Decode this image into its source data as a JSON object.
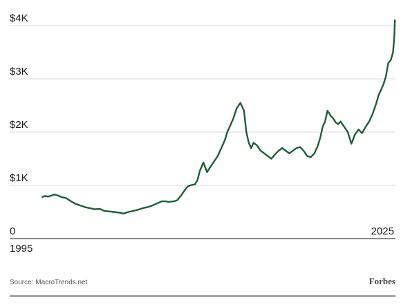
{
  "chart_data": {
    "type": "line",
    "title": "",
    "xlabel": "",
    "ylabel": "",
    "x_tick_labels": [
      "1995",
      "2025"
    ],
    "y_tick_labels": [
      "0",
      "$1K",
      "$2K",
      "$3K",
      "$4K"
    ],
    "y_ticks": [
      0,
      1000,
      2000,
      3000,
      4000
    ],
    "xlim": [
      1995,
      2025.6
    ],
    "ylim": [
      0,
      4200
    ],
    "grid": true,
    "legend": "none",
    "series": [
      {
        "color": "#1c5e35",
        "x": [
          1996.0,
          1996.2,
          1996.5,
          1996.8,
          1997.0,
          1997.3,
          1997.6,
          1998.0,
          1998.4,
          1998.8,
          1999.2,
          1999.6,
          2000.0,
          2000.4,
          2000.8,
          2001.2,
          2001.6,
          2002.0,
          2002.4,
          2002.8,
          2003.2,
          2003.6,
          2004.0,
          2004.4,
          2004.8,
          2005.2,
          2005.6,
          2006.0,
          2006.3,
          2006.6,
          2007.0,
          2007.3,
          2007.6,
          2008.0,
          2008.2,
          2008.4,
          2008.6,
          2008.8,
          2009.0,
          2009.2,
          2009.5,
          2009.8,
          2010.1,
          2010.4,
          2010.7,
          2011.0,
          2011.3,
          2011.5,
          2011.7,
          2012.0,
          2012.3,
          2012.6,
          2012.9,
          2013.1,
          2013.3,
          2013.5,
          2013.7,
          2014.0,
          2014.3,
          2014.6,
          2014.9,
          2015.2,
          2015.5,
          2015.8,
          2016.1,
          2016.4,
          2016.7,
          2017.0,
          2017.3,
          2017.6,
          2017.9,
          2018.2,
          2018.5,
          2018.8,
          2019.1,
          2019.3,
          2019.5,
          2019.7,
          2019.9,
          2020.2,
          2020.4,
          2020.6,
          2020.8,
          2021.0,
          2021.3,
          2021.6,
          2021.9,
          2022.2,
          2022.5,
          2022.8,
          2023.1,
          2023.4,
          2023.7,
          2024.0,
          2024.2,
          2024.4,
          2024.6,
          2024.8,
          2025.0,
          2025.2,
          2025.4,
          2025.5,
          2025.55
        ],
        "y": [
          780,
          800,
          790,
          810,
          830,
          810,
          780,
          760,
          700,
          650,
          620,
          590,
          570,
          550,
          560,
          520,
          510,
          500,
          490,
          470,
          500,
          520,
          540,
          570,
          590,
          620,
          660,
          700,
          700,
          690,
          700,
          720,
          800,
          930,
          980,
          1000,
          1010,
          1020,
          1100,
          1270,
          1430,
          1250,
          1350,
          1450,
          1550,
          1700,
          1850,
          2000,
          2100,
          2250,
          2450,
          2550,
          2400,
          2000,
          1800,
          1700,
          1800,
          1750,
          1650,
          1600,
          1550,
          1500,
          1580,
          1650,
          1700,
          1650,
          1600,
          1650,
          1700,
          1720,
          1650,
          1550,
          1530,
          1600,
          1750,
          1900,
          2100,
          2200,
          2400,
          2300,
          2250,
          2180,
          2150,
          2200,
          2100,
          2000,
          1780,
          1950,
          2050,
          1980,
          2100,
          2200,
          2350,
          2550,
          2700,
          2800,
          2900,
          3050,
          3300,
          3350,
          3500,
          3800,
          4100
        ]
      }
    ]
  },
  "footer": {
    "source": "Source: MacroTrends.net",
    "brand": "Forbes"
  }
}
